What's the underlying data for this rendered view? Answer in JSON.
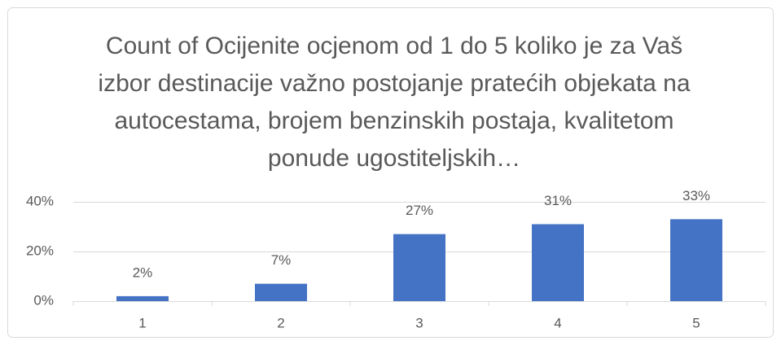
{
  "chart_data": {
    "type": "bar",
    "title": "Count of Ocijenite ocjenom od 1 do 5 koliko je za Vaš izbor destinacije važno postojanje pratećih objekata na autocestama, brojem benzinskih postaja, kvalitetom ponude ugostiteljskih…",
    "categories": [
      "1",
      "2",
      "3",
      "4",
      "5"
    ],
    "values": [
      2,
      7,
      27,
      31,
      33
    ],
    "value_labels": [
      "2%",
      "7%",
      "27%",
      "31%",
      "33%"
    ],
    "color": "#4472c4",
    "ylim": [
      0,
      40
    ],
    "yticks": [
      {
        "value": 0,
        "label": "0%"
      },
      {
        "value": 20,
        "label": "20%"
      },
      {
        "value": 40,
        "label": "40%"
      }
    ],
    "grid": true
  }
}
